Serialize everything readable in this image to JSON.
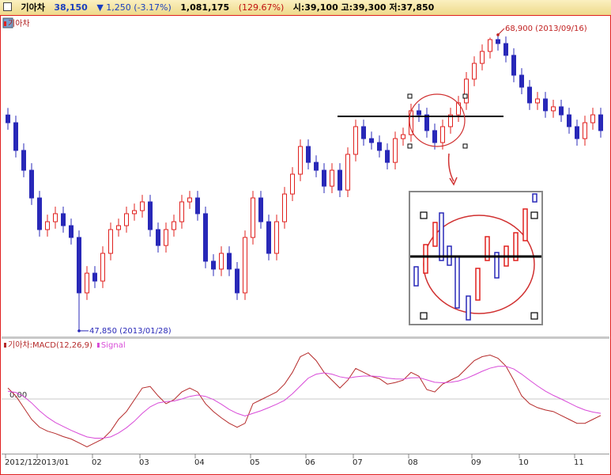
{
  "header": {
    "name": "기아차",
    "price": "38,150",
    "change": "▼ 1,250 (-3.17%)",
    "volume": "1,081,175",
    "volume_ratio": "(129.67%)",
    "ohl": "시:39,100 고:39,300 저:37,850"
  },
  "chart_data": [
    {
      "type": "candlestick",
      "name": "기아차",
      "up_color": "#e0201e",
      "down_color": "#2828b8",
      "ylim": [
        47450,
        69800
      ],
      "low_label": "47,850 (2013/01/28)",
      "high_label": "68,900 (2013/09/16)",
      "reference_line": 63100,
      "open": [
        63200,
        62650,
        60680,
        59270,
        57300,
        55050,
        55610,
        56180,
        55330,
        54490,
        50550,
        51950,
        51390,
        53360,
        55050,
        55330,
        56180,
        56400,
        57020,
        55050,
        53920,
        55050,
        55610,
        57020,
        57300,
        56180,
        52800,
        52240,
        53360,
        52240,
        50550,
        54490,
        57300,
        55610,
        53360,
        55610,
        57580,
        58990,
        60960,
        59830,
        59270,
        58140,
        59270,
        57860,
        60400,
        62370,
        61520,
        61240,
        60680,
        59830,
        61520,
        61800,
        63500,
        63210,
        62090,
        61240,
        62370,
        63210,
        64060,
        65750,
        66870,
        67720,
        68560,
        68280,
        67440,
        66030,
        65180,
        64060,
        64340,
        63500,
        63780,
        63210,
        62370,
        61520,
        62650,
        63210
      ],
      "high": [
        63700,
        63150,
        61180,
        59770,
        57800,
        56110,
        56680,
        56680,
        55830,
        54990,
        52450,
        52450,
        53860,
        55550,
        55830,
        56680,
        56900,
        57520,
        57520,
        55550,
        55550,
        56110,
        57520,
        57800,
        57800,
        56680,
        53300,
        53860,
        53860,
        52740,
        54990,
        57800,
        57800,
        56110,
        56110,
        58080,
        59490,
        61460,
        61460,
        60330,
        59770,
        59770,
        59770,
        60900,
        62870,
        62870,
        62020,
        61740,
        61180,
        62020,
        62300,
        64000,
        64000,
        63710,
        62590,
        62870,
        63710,
        64560,
        66250,
        67370,
        68220,
        68700,
        68900,
        68780,
        67940,
        66530,
        65680,
        64840,
        64840,
        64280,
        64280,
        63710,
        62870,
        63150,
        63710,
        63710
      ],
      "low": [
        62150,
        60180,
        58770,
        56800,
        54550,
        54550,
        55110,
        54830,
        53990,
        47850,
        50050,
        50890,
        50890,
        52860,
        54550,
        54830,
        55680,
        55900,
        54550,
        53420,
        53420,
        54550,
        55110,
        56520,
        55680,
        52300,
        51740,
        51740,
        51740,
        50050,
        50050,
        53990,
        55110,
        52860,
        52860,
        55110,
        57080,
        58490,
        59330,
        58770,
        57640,
        57640,
        57360,
        57360,
        59900,
        61020,
        60740,
        60180,
        59330,
        59330,
        61020,
        61300,
        62710,
        61590,
        60740,
        60740,
        61870,
        62710,
        63560,
        65250,
        66370,
        67220,
        67780,
        66940,
        65530,
        64680,
        63560,
        63560,
        63000,
        63000,
        62710,
        61870,
        61020,
        61020,
        62150,
        61590
      ],
      "close": [
        62650,
        60680,
        59270,
        57300,
        55050,
        55610,
        56180,
        55330,
        54490,
        50550,
        51950,
        51390,
        53360,
        55050,
        55330,
        56180,
        56400,
        57020,
        55050,
        53920,
        55050,
        55610,
        57020,
        57300,
        56180,
        52800,
        52240,
        53360,
        52240,
        50550,
        54490,
        57300,
        55610,
        53360,
        55610,
        57580,
        58990,
        60960,
        59830,
        59270,
        58140,
        59270,
        57860,
        60400,
        62370,
        61520,
        61240,
        60680,
        59830,
        61520,
        61800,
        63500,
        63210,
        62090,
        61240,
        62370,
        63210,
        64060,
        65750,
        66870,
        67720,
        68560,
        68280,
        67440,
        66030,
        65180,
        64060,
        64340,
        63500,
        63780,
        63210,
        62370,
        61520,
        62650,
        63210,
        62090
      ]
    },
    {
      "type": "line",
      "ylim": [
        -2000,
        2000
      ],
      "yticks": [
        {
          "value": 0,
          "label": "0.00"
        }
      ],
      "categories": [
        "2012/12",
        null,
        null,
        null,
        "2013/01",
        null,
        null,
        null,
        null,
        null,
        null,
        "02",
        null,
        null,
        null,
        null,
        null,
        "03",
        null,
        null,
        null,
        null,
        null,
        null,
        "04",
        null,
        null,
        null,
        null,
        null,
        null,
        "05",
        null,
        null,
        null,
        null,
        null,
        null,
        "06",
        null,
        null,
        null,
        null,
        null,
        "07",
        null,
        null,
        null,
        null,
        null,
        null,
        "08",
        null,
        null,
        null,
        null,
        null,
        null,
        null,
        "09",
        null,
        null,
        null,
        null,
        null,
        "10",
        null,
        null,
        null,
        null,
        null,
        null,
        "11",
        null,
        null,
        null
      ],
      "series": [
        {
          "name": "기아차:MACD(12,26,9)",
          "color": "#b52a2a",
          "values": [
            420,
            120,
            -330,
            -780,
            -1080,
            -1230,
            -1320,
            -1440,
            -1530,
            -1680,
            -1830,
            -1680,
            -1530,
            -1230,
            -780,
            -480,
            -30,
            420,
            480,
            120,
            -180,
            -30,
            270,
            420,
            270,
            -180,
            -480,
            -720,
            -930,
            -1080,
            -930,
            -180,
            -30,
            120,
            270,
            570,
            1020,
            1620,
            1770,
            1470,
            1020,
            720,
            420,
            720,
            1170,
            1020,
            870,
            780,
            570,
            630,
            720,
            1020,
            870,
            360,
            270,
            570,
            720,
            870,
            1170,
            1470,
            1620,
            1680,
            1560,
            1260,
            720,
            120,
            -180,
            -330,
            -420,
            -480,
            -630,
            -780,
            -930,
            -930,
            -780,
            -630
          ]
        },
        {
          "name": "Signal",
          "color": "#d84ad8",
          "values": [
            300,
            250,
            100,
            -150,
            -450,
            -700,
            -900,
            -1050,
            -1200,
            -1330,
            -1450,
            -1500,
            -1500,
            -1450,
            -1300,
            -1100,
            -850,
            -550,
            -300,
            -150,
            -100,
            -80,
            0,
            100,
            150,
            100,
            -20,
            -200,
            -400,
            -550,
            -650,
            -550,
            -450,
            -330,
            -200,
            -50,
            200,
            500,
            800,
            950,
            1000,
            950,
            850,
            800,
            850,
            880,
            880,
            860,
            800,
            770,
            760,
            810,
            820,
            730,
            640,
            620,
            640,
            690,
            790,
            920,
            1060,
            1180,
            1250,
            1250,
            1150,
            950,
            720,
            500,
            300,
            140,
            0,
            -150,
            -300,
            -420,
            -500,
            -550
          ]
        }
      ]
    }
  ]
}
